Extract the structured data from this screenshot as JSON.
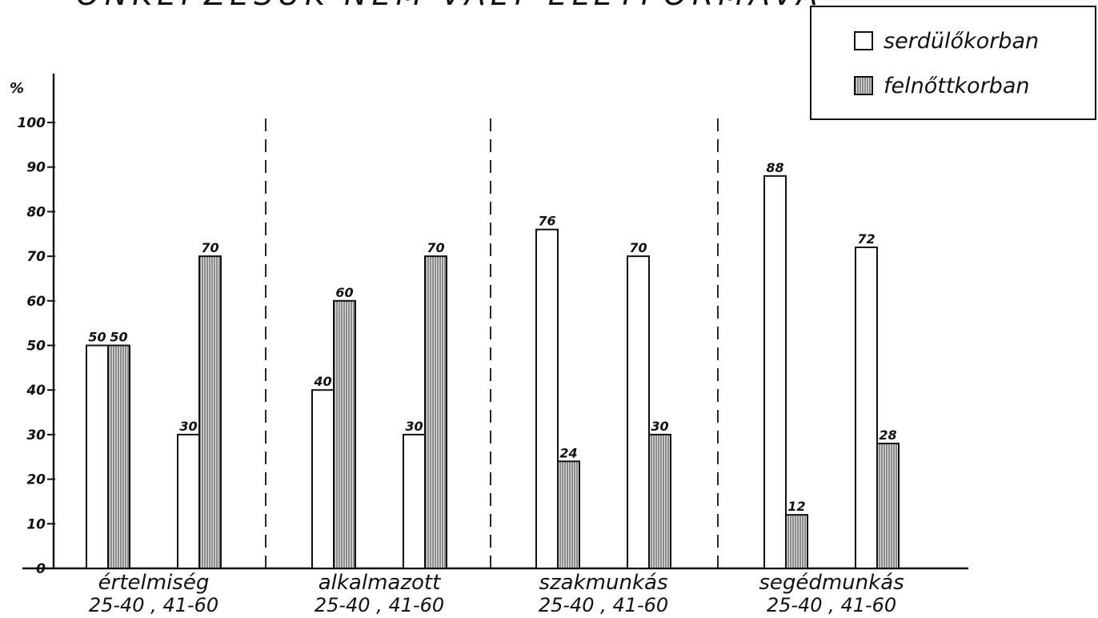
{
  "chart_data": {
    "type": "bar",
    "title": "ÖNKÉPZÉSÜK NEM VÁLT ÉLETFORMÁVÁ",
    "ylabel": "%",
    "ylim": [
      0,
      100
    ],
    "yticks": [
      0,
      10,
      20,
      30,
      40,
      50,
      60,
      70,
      80,
      90,
      100
    ],
    "grid": false,
    "legend_position": "top-right",
    "groups": [
      {
        "label": "értelmiség",
        "sublabel": "25-40 , 41-60"
      },
      {
        "label": "alkalmazott",
        "sublabel": "25-40 , 41-60"
      },
      {
        "label": "szakmunkás",
        "sublabel": "25-40 , 41-60"
      },
      {
        "label": "segédmunkás",
        "sublabel": "25-40 , 41-60"
      }
    ],
    "categories": [
      "25-40",
      "41-60",
      "25-40",
      "41-60",
      "25-40",
      "41-60",
      "25-40",
      "41-60"
    ],
    "series": [
      {
        "name": "serdülőkorban",
        "values": [
          50,
          30,
          40,
          30,
          76,
          70,
          88,
          72
        ],
        "fill": "white"
      },
      {
        "name": "felnőttkorban",
        "values": [
          50,
          70,
          60,
          70,
          24,
          30,
          12,
          28
        ],
        "fill": "hatched"
      }
    ]
  },
  "colors": {
    "ink": "#111111",
    "hatch": "#555555",
    "background": "#ffffff"
  }
}
